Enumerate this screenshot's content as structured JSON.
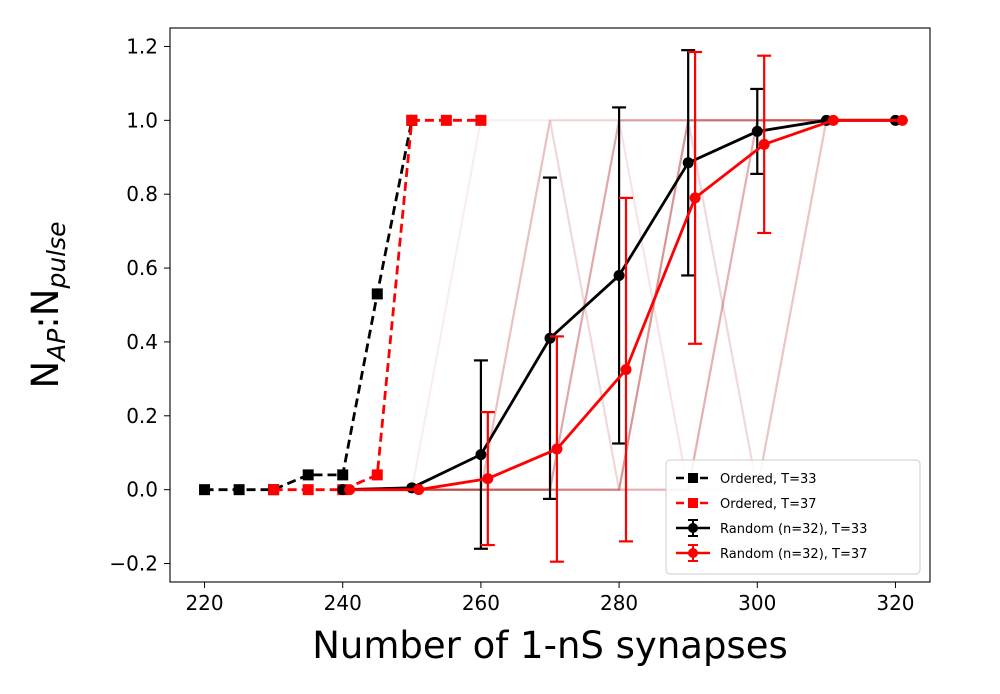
{
  "chart_data": {
    "type": "line",
    "xlabel": "Number of 1-nS synapses",
    "ylabel": {
      "base1": "N",
      "sub1": "AP",
      "sep": ":",
      "base2": "N",
      "sub2": "pulse"
    },
    "xlim": [
      215,
      325
    ],
    "ylim": [
      -0.25,
      1.25
    ],
    "xticks": [
      220,
      240,
      260,
      280,
      300,
      320
    ],
    "yticks": [
      -0.2,
      0.0,
      0.2,
      0.4,
      0.6,
      0.8,
      1.0,
      1.2
    ],
    "xtick_labels": [
      "220",
      "240",
      "260",
      "280",
      "300",
      "320"
    ],
    "ytick_labels": [
      "−0.2",
      "0.0",
      "0.2",
      "0.4",
      "0.6",
      "0.8",
      "1.0",
      "1.2"
    ],
    "grid": false,
    "legend_position": "lower-right",
    "series": [
      {
        "name": "Ordered, T=33",
        "color": "#000000",
        "linestyle": "dashed",
        "marker": "square",
        "x": [
          220,
          225,
          230,
          235,
          240,
          245,
          250
        ],
        "y": [
          0.0,
          0.0,
          0.0,
          0.04,
          0.04,
          0.53,
          1.0
        ]
      },
      {
        "name": "Ordered, T=37",
        "color": "#ff0000",
        "linestyle": "dashed",
        "marker": "square",
        "x": [
          230,
          235,
          240,
          245,
          250,
          255,
          260
        ],
        "y": [
          0.0,
          0.0,
          0.0,
          0.04,
          1.0,
          1.0,
          1.0
        ]
      },
      {
        "name": "Random (n=32), T=33",
        "color": "#000000",
        "linestyle": "solid",
        "marker": "circle",
        "x": [
          240,
          250,
          260,
          270,
          280,
          290,
          300,
          310,
          320
        ],
        "y": [
          0.0,
          0.005,
          0.095,
          0.41,
          0.58,
          0.885,
          0.97,
          1.0,
          1.0
        ],
        "yerr": [
          0.0,
          0.0,
          0.255,
          0.435,
          0.455,
          0.305,
          0.115,
          0.0,
          0.0
        ]
      },
      {
        "name": "Random (n=32), T=37",
        "color": "#ff0000",
        "linestyle": "solid",
        "marker": "circle",
        "x": [
          241,
          251,
          261,
          271,
          281,
          291,
          301,
          311,
          321
        ],
        "y": [
          0.0,
          0.0,
          0.03,
          0.11,
          0.325,
          0.79,
          0.935,
          1.0,
          1.0
        ],
        "yerr": [
          0.0,
          0.0,
          0.18,
          0.305,
          0.465,
          0.395,
          0.24,
          0.0,
          0.0
        ]
      }
    ],
    "background_traces": {
      "color": "#b22222",
      "x": [
        250,
        260,
        270,
        280,
        290,
        300,
        310
      ],
      "traces": [
        {
          "y": [
            0,
            1,
            1,
            1,
            1,
            1,
            1
          ],
          "opacity": 0.08
        },
        {
          "y": [
            0,
            0,
            1,
            1,
            1,
            1,
            1
          ],
          "opacity": 0.12
        },
        {
          "y": [
            0,
            0,
            1,
            0,
            1,
            1,
            1
          ],
          "opacity": 0.1
        },
        {
          "y": [
            0,
            0,
            0,
            1,
            1,
            1,
            1
          ],
          "opacity": 0.25
        },
        {
          "y": [
            0,
            0,
            0,
            1,
            0,
            1,
            1
          ],
          "opacity": 0.12
        },
        {
          "y": [
            0,
            0,
            0,
            0,
            1,
            1,
            1
          ],
          "opacity": 0.35
        },
        {
          "y": [
            0,
            0,
            0,
            0,
            1,
            0,
            1
          ],
          "opacity": 0.1
        },
        {
          "y": [
            0,
            0,
            0,
            0,
            0,
            1,
            1
          ],
          "opacity": 0.2
        },
        {
          "y": [
            0,
            0,
            1,
            0,
            0,
            1,
            1
          ],
          "opacity": 0.08
        },
        {
          "y": [
            0,
            0,
            0,
            1,
            1,
            0,
            1
          ],
          "opacity": 0.08
        },
        {
          "y": [
            0,
            0,
            0,
            0,
            0,
            0,
            1
          ],
          "opacity": 0.1
        }
      ]
    }
  }
}
